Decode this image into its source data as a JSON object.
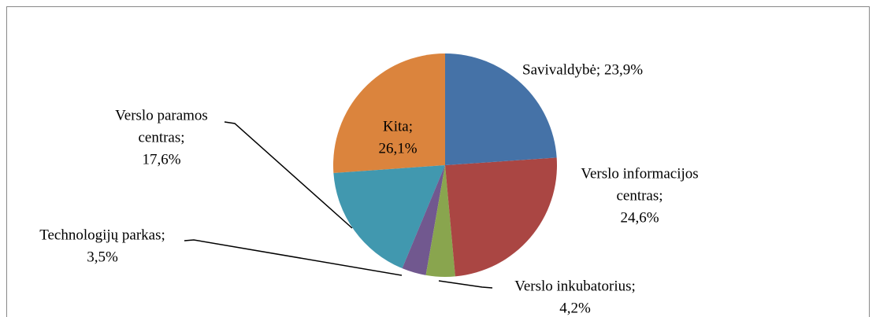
{
  "chart_data": {
    "type": "pie",
    "categories": [
      "Savivaldybė",
      "Verslo informacijos centras",
      "Verslo inkubatorius",
      "Technologijų parkas",
      "Verslo paramos centras",
      "Kita"
    ],
    "values": [
      23.9,
      24.6,
      4.2,
      3.5,
      17.6,
      26.1
    ],
    "value_labels": [
      [
        "Savivaldybė; 23,9%"
      ],
      [
        "Verslo informacijos",
        "centras;",
        "24,6%"
      ],
      [
        "Verslo inkubatorius;",
        "4,2%"
      ],
      [
        "Technologijų parkas;",
        "3,5%"
      ],
      [
        "Verslo paramos",
        "centras;",
        "17,6%"
      ],
      [
        "Kita;",
        "26,1%"
      ]
    ],
    "colors": [
      "#4572a7",
      "#aa4643",
      "#89a54e",
      "#71588f",
      "#4198af",
      "#db843d"
    ]
  }
}
